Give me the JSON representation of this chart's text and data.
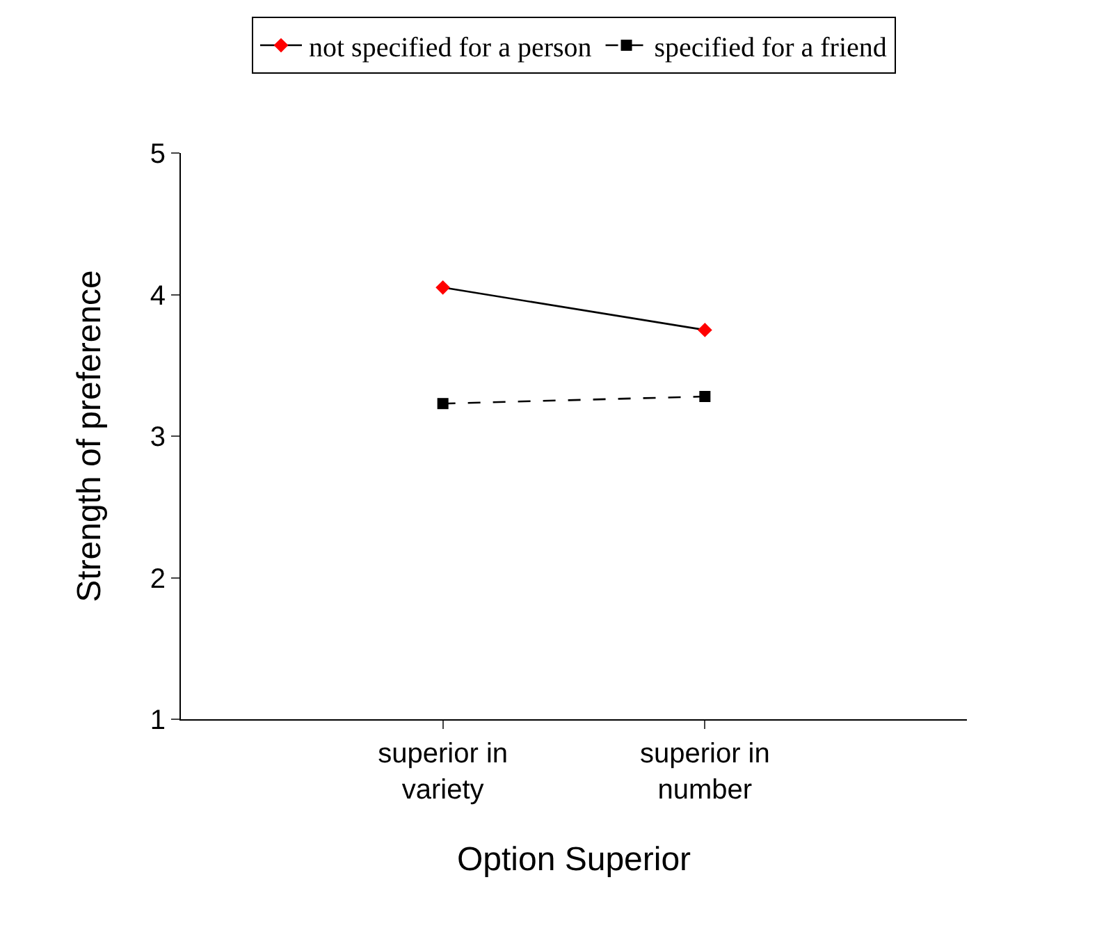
{
  "chart_data": {
    "type": "line",
    "xlabel": "Option Superior",
    "ylabel": "Strength of preference",
    "categories": [
      "superior in variety",
      "superior in number"
    ],
    "series": [
      {
        "name": "not specified for a person",
        "color": "#ff0000",
        "values": [
          4.05,
          3.75
        ],
        "marker": "diamond",
        "line_style": "solid"
      },
      {
        "name": "specified for a friend",
        "color": "#000000",
        "values": [
          3.23,
          3.28
        ],
        "marker": "square",
        "line_style": "dashed"
      }
    ],
    "ylim": [
      1,
      5
    ],
    "yticks": [
      1,
      2,
      3,
      4,
      5
    ],
    "grid": false,
    "legend": "top"
  }
}
